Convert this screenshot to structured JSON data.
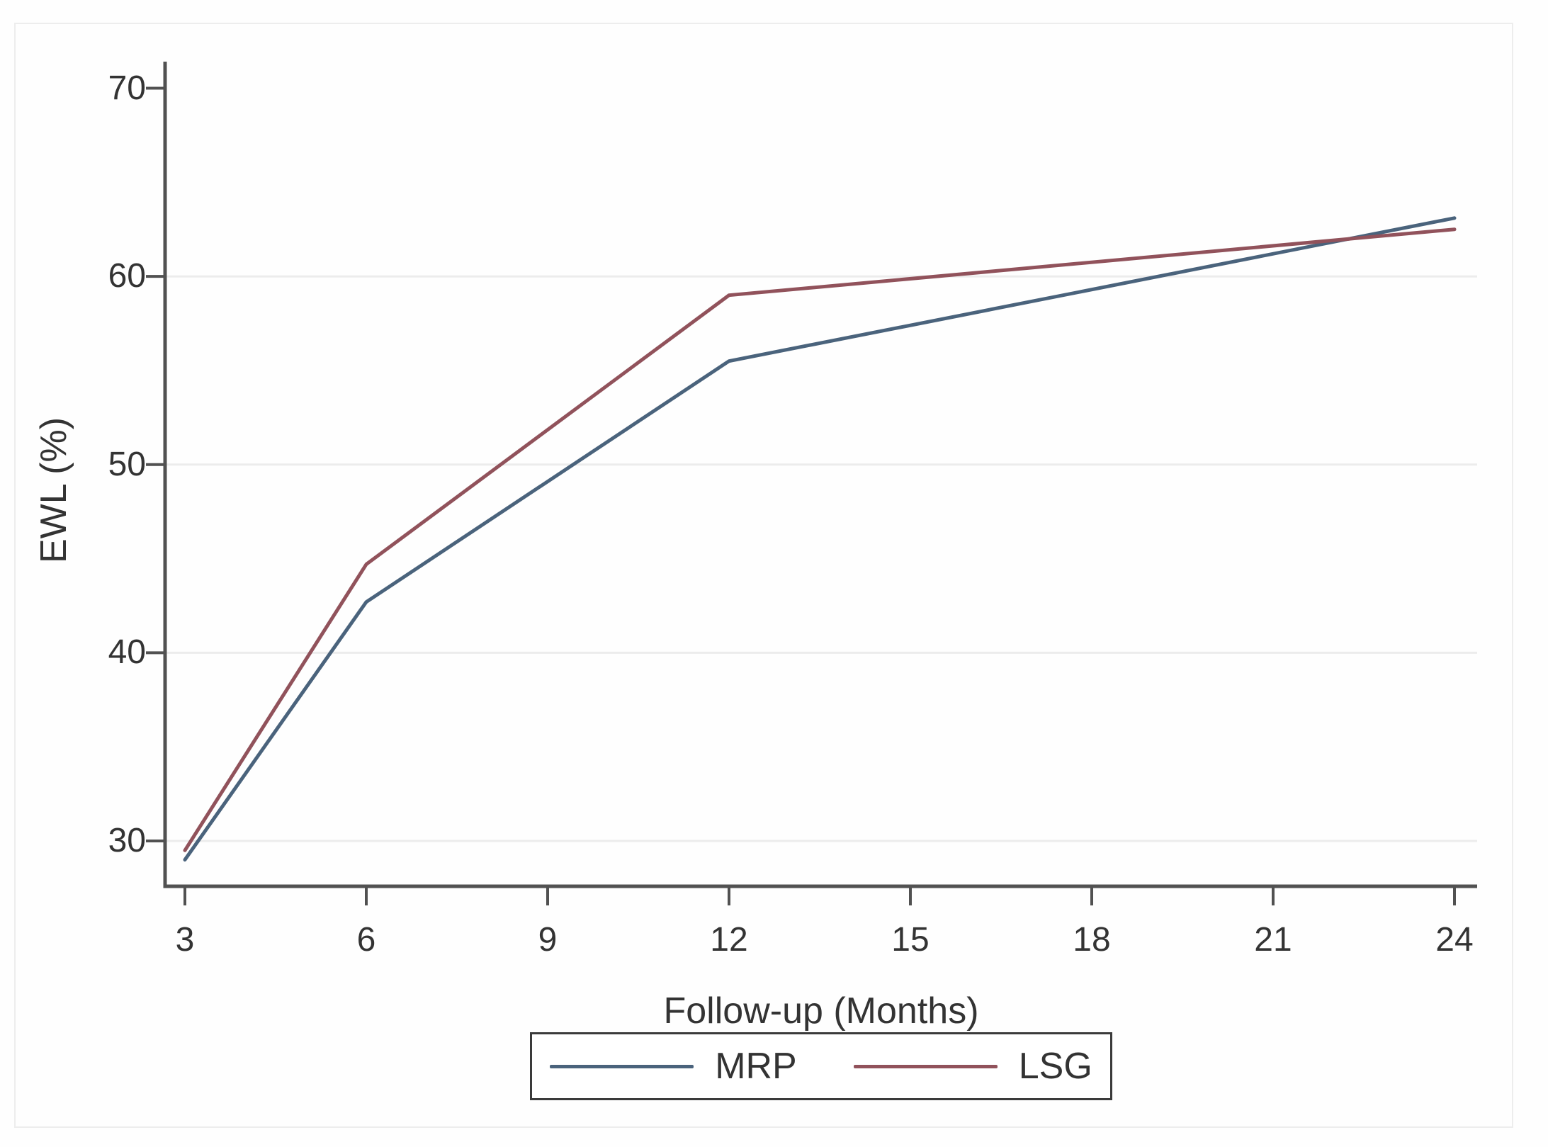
{
  "colors": {
    "axis": "#515151",
    "grid": "#ececec",
    "text": "#333333",
    "legend_border": "#3a3a3a",
    "background": "#fefefe"
  },
  "chart_data": {
    "type": "line",
    "title": "",
    "xlabel": "Follow-up (Months)",
    "ylabel": "EWL (%)",
    "x": [
      3,
      6,
      12,
      24
    ],
    "series": [
      {
        "name": "MRP",
        "color": "#4a637c",
        "values": [
          29.0,
          42.7,
          55.5,
          63.1
        ]
      },
      {
        "name": "LSG",
        "color": "#91525b",
        "values": [
          29.5,
          44.7,
          59.0,
          62.5
        ]
      }
    ],
    "x_ticks": [
      3,
      6,
      9,
      12,
      15,
      18,
      21,
      24
    ],
    "y_ticks": [
      70,
      60,
      50,
      40,
      30
    ],
    "gridlines_y": [
      30,
      40,
      50,
      60
    ],
    "xlim": [
      2.7,
      24.4
    ],
    "ylim": [
      27.6,
      71.4
    ],
    "grid": "horizontal-only",
    "legend_position": "bottom-center-boxed"
  },
  "legend": {
    "items": [
      {
        "label": "MRP"
      },
      {
        "label": "LSG"
      }
    ]
  }
}
